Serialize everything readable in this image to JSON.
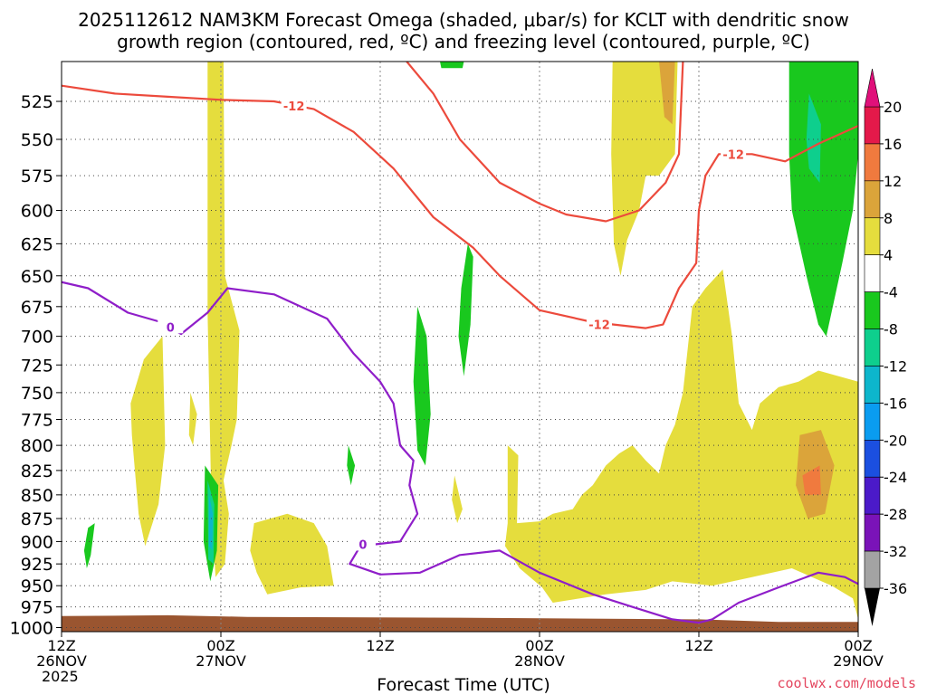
{
  "title_line1": "2025112612 NAM3KM Forecast Omega (shaded, μbar/s) for KCLT with dendritic snow",
  "title_line2": "growth region (contoured, red, ºC) and freezing level (contoured, purple, ºC)",
  "credit": "coolwx.com/models",
  "chart_data": {
    "type": "heatmap",
    "xlabel": "Forecast Time (UTC)",
    "x_ticks": [
      {
        "hour": 0,
        "line1": "12Z",
        "line2": "26NOV",
        "line3": "2025"
      },
      {
        "hour": 12,
        "line1": "00Z",
        "line2": "27NOV",
        "line3": ""
      },
      {
        "hour": 24,
        "line1": "12Z",
        "line2": "",
        "line3": ""
      },
      {
        "hour": 36,
        "line1": "00Z",
        "line2": "28NOV",
        "line3": ""
      },
      {
        "hour": 48,
        "line1": "12Z",
        "line2": "",
        "line3": ""
      },
      {
        "hour": 60,
        "line1": "00Z",
        "line2": "29NOV",
        "line3": ""
      }
    ],
    "xlim_hours": [
      0,
      60
    ],
    "ylabel": "",
    "y_ticks": [
      525,
      550,
      575,
      600,
      625,
      650,
      675,
      700,
      725,
      750,
      775,
      800,
      825,
      850,
      875,
      900,
      925,
      950,
      975,
      1000
    ],
    "ylim_mb": [
      500,
      1005
    ],
    "grid": true,
    "colorbar": {
      "ticks": [
        20,
        16,
        12,
        8,
        4,
        -4,
        -8,
        -12,
        -16,
        -20,
        -24,
        -28,
        -32,
        -36
      ],
      "colors": [
        "#e4194a",
        "#f07a3e",
        "#dba43a",
        "#e5dd3d",
        "#ffffff",
        "#19c81e",
        "#0ecf8d",
        "#0db6cc",
        "#0a9cf0",
        "#1b4fe0",
        "#4b1ac9",
        "#7a13b8",
        "#a3a3a3"
      ]
    },
    "ground_color": "#9a5530",
    "ground_top_mb": [
      {
        "h": 0,
        "p": 986
      },
      {
        "h": 8,
        "p": 985
      },
      {
        "h": 14,
        "p": 987
      },
      {
        "h": 30,
        "p": 988
      },
      {
        "h": 48,
        "p": 990
      },
      {
        "h": 54,
        "p": 993
      },
      {
        "h": 60,
        "p": 993
      }
    ],
    "dgz_minus12_upper": {
      "label": "-12",
      "points": [
        {
          "h": 0,
          "p": 515
        },
        {
          "h": 4,
          "p": 520
        },
        {
          "h": 8,
          "p": 522
        },
        {
          "h": 12,
          "p": 524
        },
        {
          "h": 16,
          "p": 525
        },
        {
          "h": 19,
          "p": 530
        },
        {
          "h": 22,
          "p": 545
        },
        {
          "h": 25,
          "p": 570
        },
        {
          "h": 28,
          "p": 605
        },
        {
          "h": 31,
          "p": 628
        },
        {
          "h": 33,
          "p": 650
        },
        {
          "h": 36,
          "p": 678
        },
        {
          "h": 40,
          "p": 688
        },
        {
          "h": 44,
          "p": 693
        },
        {
          "h": 45.3,
          "p": 690
        },
        {
          "h": 46.5,
          "p": 660
        },
        {
          "h": 47.8,
          "p": 640
        },
        {
          "h": 48,
          "p": 600
        },
        {
          "h": 48.5,
          "p": 575
        },
        {
          "h": 49.5,
          "p": 560
        },
        {
          "h": 52,
          "p": 560
        },
        {
          "h": 54.5,
          "p": 565
        },
        {
          "h": 57,
          "p": 553
        },
        {
          "h": 60,
          "p": 541
        }
      ]
    },
    "dgz_minus12_lower": {
      "label": "-12",
      "points": [
        {
          "h": 26,
          "p": 500
        },
        {
          "h": 28,
          "p": 520
        },
        {
          "h": 30,
          "p": 550
        },
        {
          "h": 33,
          "p": 580
        },
        {
          "h": 36,
          "p": 595
        },
        {
          "h": 38,
          "p": 603
        },
        {
          "h": 41,
          "p": 608
        },
        {
          "h": 43.5,
          "p": 600
        },
        {
          "h": 45.5,
          "p": 580
        },
        {
          "h": 46.5,
          "p": 560
        },
        {
          "h": 46.8,
          "p": 500
        }
      ]
    },
    "freezing_level_0C": {
      "label": "0",
      "points": [
        {
          "h": 0,
          "p": 655
        },
        {
          "h": 2,
          "p": 660
        },
        {
          "h": 5,
          "p": 680
        },
        {
          "h": 7.5,
          "p": 688
        },
        {
          "h": 9,
          "p": 698
        },
        {
          "h": 11,
          "p": 680
        },
        {
          "h": 12.5,
          "p": 660
        },
        {
          "h": 16,
          "p": 665
        },
        {
          "h": 20,
          "p": 685
        },
        {
          "h": 22,
          "p": 715
        },
        {
          "h": 24,
          "p": 740
        },
        {
          "h": 25,
          "p": 760
        },
        {
          "h": 25.5,
          "p": 800
        },
        {
          "h": 26.5,
          "p": 815
        },
        {
          "h": 26.2,
          "p": 840
        },
        {
          "h": 26.8,
          "p": 870
        },
        {
          "h": 25.5,
          "p": 900
        },
        {
          "h": 22.5,
          "p": 905
        },
        {
          "h": 21.7,
          "p": 925
        },
        {
          "h": 24,
          "p": 937
        },
        {
          "h": 27,
          "p": 935
        },
        {
          "h": 30,
          "p": 915
        },
        {
          "h": 33,
          "p": 910
        },
        {
          "h": 36,
          "p": 935
        },
        {
          "h": 40,
          "p": 960
        },
        {
          "h": 43,
          "p": 975
        },
        {
          "h": 46,
          "p": 990
        },
        {
          "h": 48,
          "p": 994
        },
        {
          "h": 49,
          "p": 990
        },
        {
          "h": 51,
          "p": 970
        },
        {
          "h": 54,
          "p": 952
        },
        {
          "h": 57,
          "p": 935
        },
        {
          "h": 59,
          "p": 940
        },
        {
          "h": 60,
          "p": 948
        }
      ]
    },
    "omega_regions": [
      {
        "value_band": "4 to 8",
        "color": "#e5dd3d",
        "points": [
          {
            "h": 11,
            "p": 500
          },
          {
            "h": 12.2,
            "p": 500
          },
          {
            "h": 12.3,
            "p": 650
          },
          {
            "h": 13.4,
            "p": 695
          },
          {
            "h": 13.2,
            "p": 775
          },
          {
            "h": 12.8,
            "p": 800
          },
          {
            "h": 12.2,
            "p": 835
          },
          {
            "h": 12.6,
            "p": 870
          },
          {
            "h": 12.3,
            "p": 925
          },
          {
            "h": 11.6,
            "p": 940
          },
          {
            "h": 11.3,
            "p": 870
          },
          {
            "h": 11,
            "p": 680
          },
          {
            "h": 11,
            "p": 600
          }
        ]
      },
      {
        "value_band": "4 to 8",
        "color": "#e5dd3d",
        "points": [
          {
            "h": 6.2,
            "p": 720
          },
          {
            "h": 7.6,
            "p": 700
          },
          {
            "h": 7.8,
            "p": 800
          },
          {
            "h": 7.3,
            "p": 860
          },
          {
            "h": 6.3,
            "p": 905
          },
          {
            "h": 5.8,
            "p": 870
          },
          {
            "h": 5.3,
            "p": 790
          },
          {
            "h": 5.2,
            "p": 760
          }
        ]
      },
      {
        "value_band": "4 to 8",
        "color": "#e5dd3d",
        "points": [
          {
            "h": 9.7,
            "p": 750
          },
          {
            "h": 10.2,
            "p": 770
          },
          {
            "h": 9.9,
            "p": 800
          },
          {
            "h": 9.6,
            "p": 790
          }
        ]
      },
      {
        "value_band": "4 to 8",
        "color": "#e5dd3d",
        "points": [
          {
            "h": 14.5,
            "p": 880
          },
          {
            "h": 17,
            "p": 870
          },
          {
            "h": 19,
            "p": 880
          },
          {
            "h": 20,
            "p": 905
          },
          {
            "h": 20.5,
            "p": 950
          },
          {
            "h": 18,
            "p": 952
          },
          {
            "h": 15.5,
            "p": 960
          },
          {
            "h": 14.7,
            "p": 935
          },
          {
            "h": 14.2,
            "p": 910
          }
        ]
      },
      {
        "value_band": "4 to 8",
        "color": "#e5dd3d",
        "points": [
          {
            "h": 29.6,
            "p": 830
          },
          {
            "h": 30.2,
            "p": 865
          },
          {
            "h": 29.8,
            "p": 880
          },
          {
            "h": 29.4,
            "p": 855
          }
        ]
      },
      {
        "value_band": "4 to 8",
        "color": "#e5dd3d",
        "points": [
          {
            "h": 33.6,
            "p": 800
          },
          {
            "h": 34.4,
            "p": 810
          },
          {
            "h": 34.3,
            "p": 880
          },
          {
            "h": 36,
            "p": 878
          },
          {
            "h": 37,
            "p": 870
          },
          {
            "h": 38.5,
            "p": 865
          },
          {
            "h": 39.2,
            "p": 850
          },
          {
            "h": 40,
            "p": 840
          },
          {
            "h": 41,
            "p": 820
          },
          {
            "h": 42,
            "p": 808
          },
          {
            "h": 43,
            "p": 800
          },
          {
            "h": 44,
            "p": 815
          },
          {
            "h": 45,
            "p": 828
          },
          {
            "h": 45.5,
            "p": 800
          },
          {
            "h": 46.2,
            "p": 780
          },
          {
            "h": 46.8,
            "p": 750
          },
          {
            "h": 47.5,
            "p": 675
          },
          {
            "h": 48.5,
            "p": 660
          },
          {
            "h": 49.8,
            "p": 645
          },
          {
            "h": 50.5,
            "p": 700
          },
          {
            "h": 51,
            "p": 760
          },
          {
            "h": 52,
            "p": 785
          },
          {
            "h": 52.6,
            "p": 760
          },
          {
            "h": 54,
            "p": 745
          },
          {
            "h": 55.5,
            "p": 740
          },
          {
            "h": 57,
            "p": 730
          },
          {
            "h": 60,
            "p": 740
          },
          {
            "h": 60,
            "p": 990
          },
          {
            "h": 59.6,
            "p": 965
          },
          {
            "h": 58,
            "p": 950
          },
          {
            "h": 55,
            "p": 930
          },
          {
            "h": 52,
            "p": 940
          },
          {
            "h": 49,
            "p": 950
          },
          {
            "h": 46,
            "p": 945
          },
          {
            "h": 44,
            "p": 955
          },
          {
            "h": 41,
            "p": 960
          },
          {
            "h": 37,
            "p": 970
          },
          {
            "h": 36.2,
            "p": 952
          },
          {
            "h": 34.5,
            "p": 930
          },
          {
            "h": 33.4,
            "p": 905
          },
          {
            "h": 33.6,
            "p": 880
          }
        ]
      },
      {
        "value_band": "4 to 8",
        "color": "#e5dd3d",
        "points": [
          {
            "h": 41.5,
            "p": 500
          },
          {
            "h": 46.4,
            "p": 500
          },
          {
            "h": 46.2,
            "p": 560
          },
          {
            "h": 45,
            "p": 575
          },
          {
            "h": 44,
            "p": 575
          },
          {
            "h": 43.5,
            "p": 600
          },
          {
            "h": 42.6,
            "p": 622
          },
          {
            "h": 42.1,
            "p": 650
          },
          {
            "h": 41.6,
            "p": 625
          },
          {
            "h": 41.4,
            "p": 560
          }
        ]
      },
      {
        "value_band": "8 to 12",
        "color": "#dba43a",
        "points": [
          {
            "h": 45,
            "p": 500
          },
          {
            "h": 46.2,
            "p": 500
          },
          {
            "h": 46,
            "p": 540
          },
          {
            "h": 45.4,
            "p": 535
          }
        ]
      },
      {
        "value_band": "8 to 12",
        "color": "#dba43a",
        "points": [
          {
            "h": 55.6,
            "p": 790
          },
          {
            "h": 57.2,
            "p": 785
          },
          {
            "h": 58.2,
            "p": 820
          },
          {
            "h": 57.5,
            "p": 870
          },
          {
            "h": 56.2,
            "p": 875
          },
          {
            "h": 55.3,
            "p": 840
          }
        ]
      },
      {
        "value_band": "12 to 16",
        "color": "#f07a3e",
        "points": [
          {
            "h": 55.8,
            "p": 830
          },
          {
            "h": 57.1,
            "p": 820
          },
          {
            "h": 57.2,
            "p": 850
          },
          {
            "h": 56,
            "p": 850
          }
        ]
      },
      {
        "value_band": "-8 to -4",
        "color": "#19c81e",
        "points": [
          {
            "h": 54.8,
            "p": 500
          },
          {
            "h": 60,
            "p": 500
          },
          {
            "h": 60,
            "p": 560
          },
          {
            "h": 59.6,
            "p": 600
          },
          {
            "h": 58.8,
            "p": 640
          },
          {
            "h": 57.6,
            "p": 700
          },
          {
            "h": 57,
            "p": 690
          },
          {
            "h": 56.1,
            "p": 650
          },
          {
            "h": 55,
            "p": 600
          },
          {
            "h": 54.8,
            "p": 560
          }
        ]
      },
      {
        "value_band": "-12 to -8",
        "color": "#0ecf8d",
        "points": [
          {
            "h": 56.3,
            "p": 520
          },
          {
            "h": 57.2,
            "p": 540
          },
          {
            "h": 57.1,
            "p": 580
          },
          {
            "h": 56.3,
            "p": 570
          },
          {
            "h": 56.1,
            "p": 550
          }
        ]
      },
      {
        "value_band": "-8 to -4",
        "color": "#19c81e",
        "points": [
          {
            "h": 10.8,
            "p": 820
          },
          {
            "h": 11.8,
            "p": 840
          },
          {
            "h": 11.7,
            "p": 910
          },
          {
            "h": 11.2,
            "p": 945
          },
          {
            "h": 10.7,
            "p": 900
          }
        ]
      },
      {
        "value_band": "-12 to -8",
        "color": "#0ecf8d",
        "points": [
          {
            "h": 11,
            "p": 835
          },
          {
            "h": 11.5,
            "p": 860
          },
          {
            "h": 11.45,
            "p": 925
          },
          {
            "h": 11.05,
            "p": 920
          }
        ]
      },
      {
        "value_band": "-16 to -12",
        "color": "#0db6cc",
        "points": [
          {
            "h": 11.1,
            "p": 850
          },
          {
            "h": 11.4,
            "p": 870
          },
          {
            "h": 11.35,
            "p": 910
          },
          {
            "h": 11.1,
            "p": 905
          }
        ]
      },
      {
        "value_band": "-8 to -4",
        "color": "#19c81e",
        "points": [
          {
            "h": 2,
            "p": 885
          },
          {
            "h": 2.5,
            "p": 880
          },
          {
            "h": 2.2,
            "p": 915
          },
          {
            "h": 1.9,
            "p": 930
          },
          {
            "h": 1.7,
            "p": 910
          }
        ]
      },
      {
        "value_band": "-8 to -4",
        "color": "#19c81e",
        "points": [
          {
            "h": 26.8,
            "p": 675
          },
          {
            "h": 27.5,
            "p": 700
          },
          {
            "h": 27.8,
            "p": 770
          },
          {
            "h": 27.4,
            "p": 820
          },
          {
            "h": 26.8,
            "p": 805
          },
          {
            "h": 26.5,
            "p": 740
          }
        ]
      },
      {
        "value_band": "-8 to -4",
        "color": "#19c81e",
        "points": [
          {
            "h": 30.6,
            "p": 625
          },
          {
            "h": 31,
            "p": 635
          },
          {
            "h": 30.8,
            "p": 690
          },
          {
            "h": 30.3,
            "p": 735
          },
          {
            "h": 29.9,
            "p": 700
          },
          {
            "h": 30.1,
            "p": 660
          }
        ]
      },
      {
        "value_band": "-8 to -4",
        "color": "#19c81e",
        "points": [
          {
            "h": 21.6,
            "p": 800
          },
          {
            "h": 22.1,
            "p": 820
          },
          {
            "h": 21.8,
            "p": 840
          },
          {
            "h": 21.5,
            "p": 820
          }
        ]
      },
      {
        "value_band": "-8 to -4",
        "color": "#19c81e",
        "points": [
          {
            "h": 28.5,
            "p": 500
          },
          {
            "h": 30.3,
            "p": 500
          },
          {
            "h": 30.2,
            "p": 504
          },
          {
            "h": 28.6,
            "p": 504
          }
        ]
      }
    ]
  }
}
